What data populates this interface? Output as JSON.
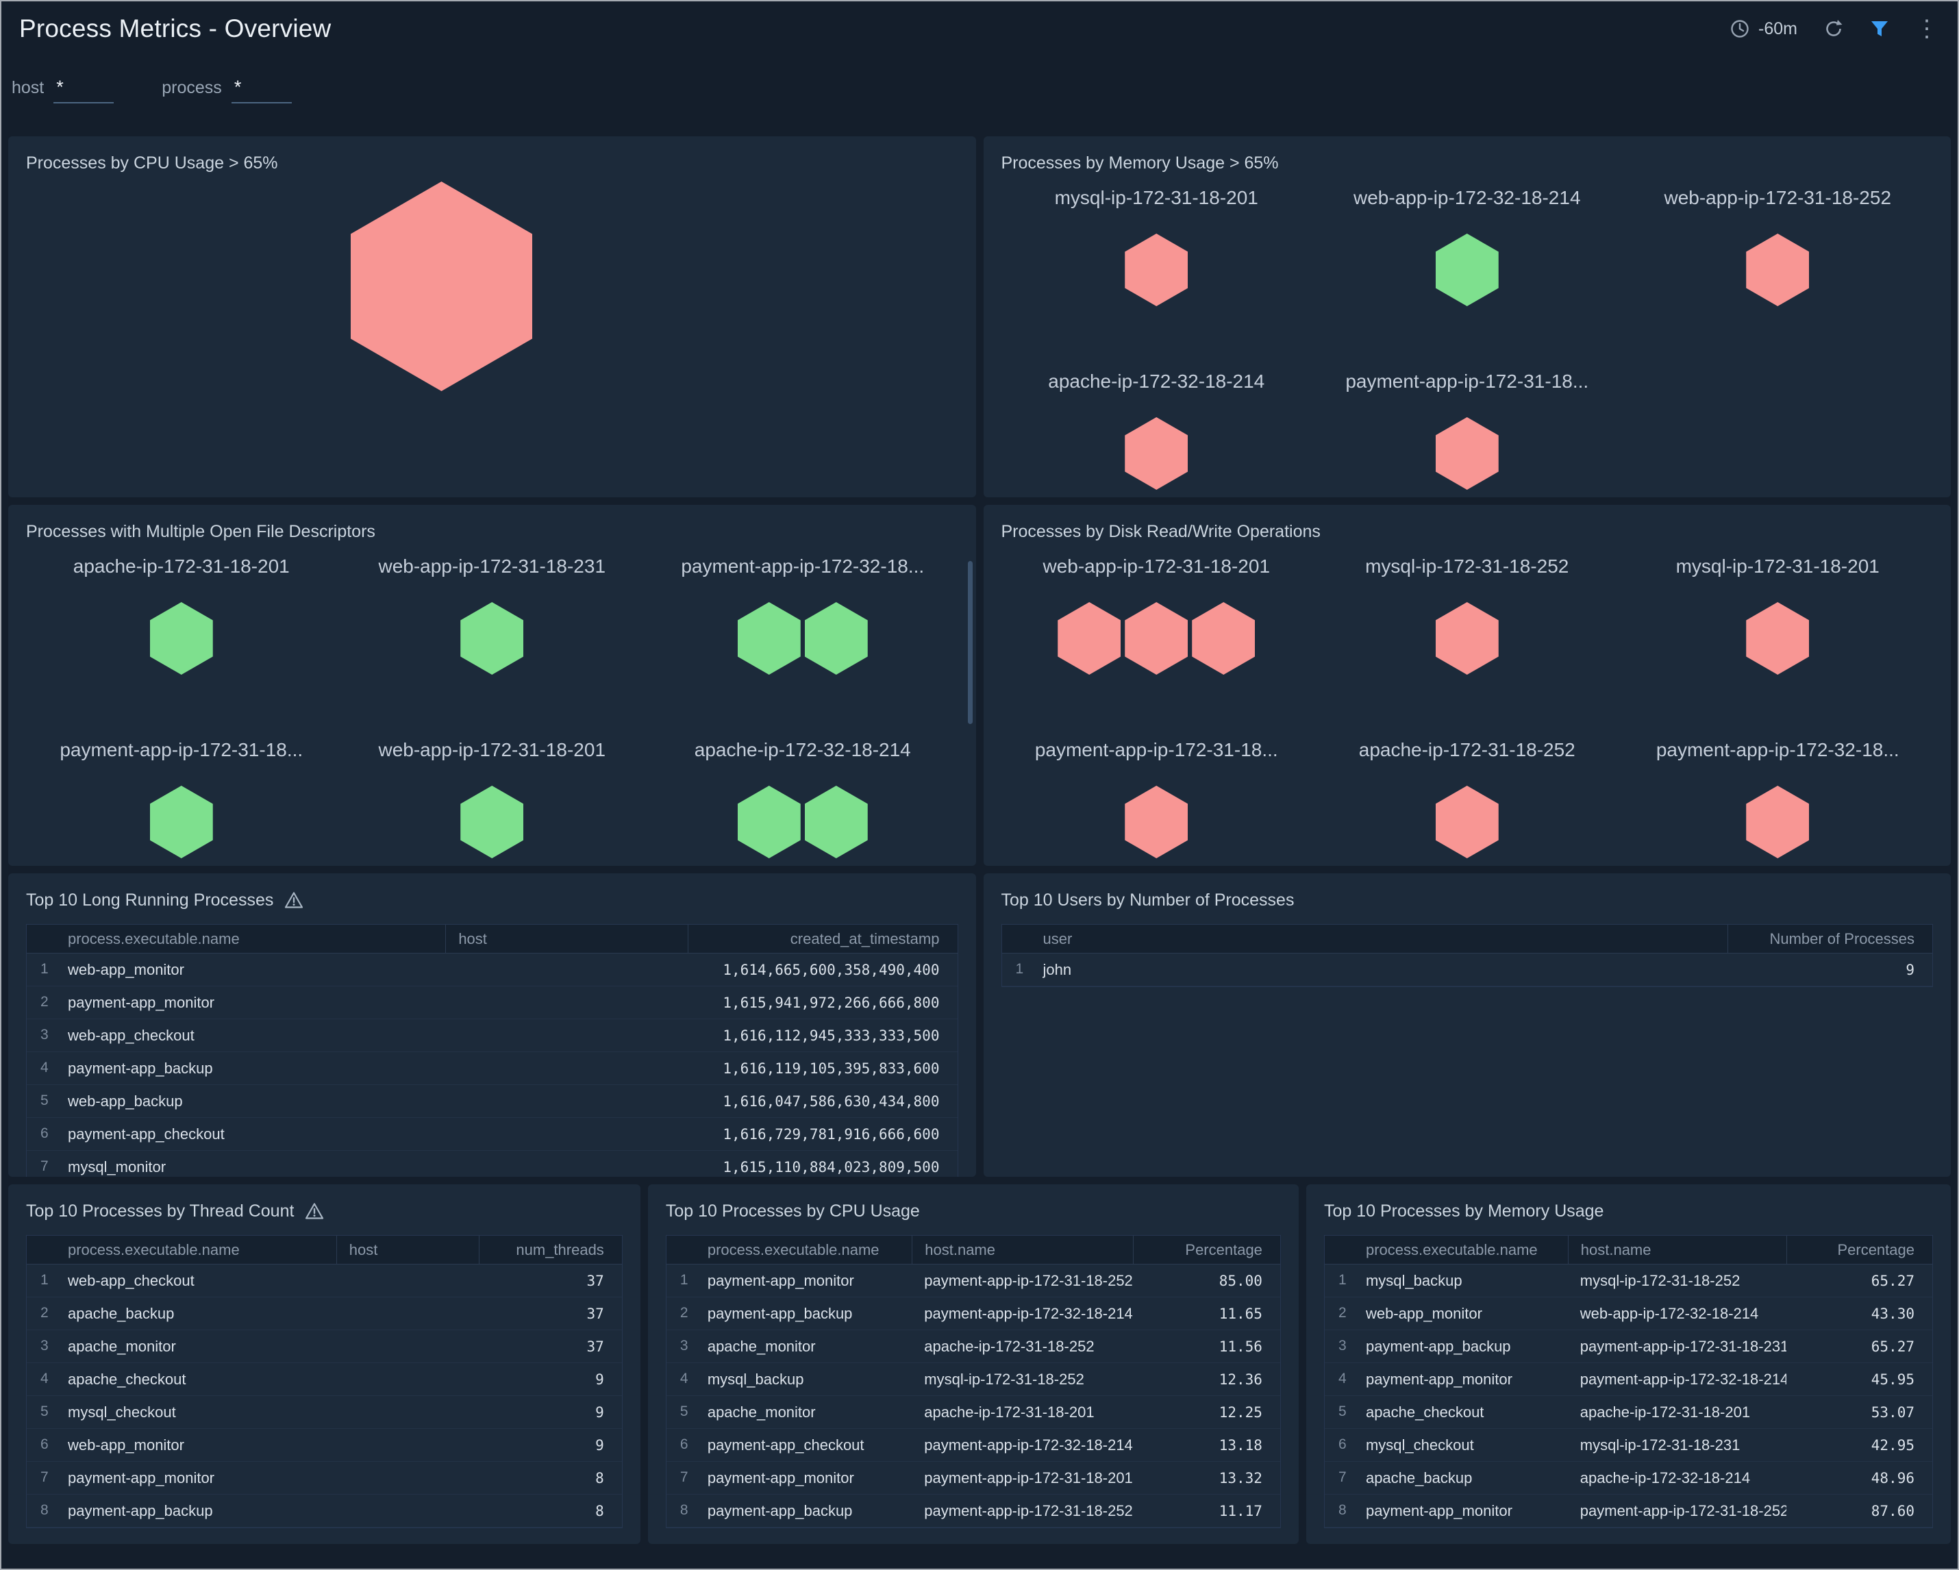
{
  "header": {
    "title": "Process Metrics - Overview",
    "time_range": "-60m"
  },
  "filters": {
    "host": {
      "label": "host",
      "value": "*"
    },
    "process": {
      "label": "process",
      "value": "*"
    }
  },
  "colors": {
    "hex_red": "#f89694",
    "hex_green": "#7ee08e",
    "accent_blue": "#3b9ef5"
  },
  "panels": {
    "cpu_usage": {
      "title": "Processes by CPU Usage > 65%",
      "big_hex_color": "red"
    },
    "memory_usage": {
      "title": "Processes by Memory Usage > 65%",
      "cells": [
        {
          "label": "mysql-ip-172-31-18-201",
          "hexes": [
            "red"
          ]
        },
        {
          "label": "web-app-ip-172-32-18-214",
          "hexes": [
            "green"
          ]
        },
        {
          "label": "web-app-ip-172-31-18-252",
          "hexes": [
            "red"
          ]
        },
        {
          "label": "apache-ip-172-32-18-214",
          "hexes": [
            "red"
          ]
        },
        {
          "label": "payment-app-ip-172-31-18...",
          "hexes": [
            "red"
          ]
        },
        {
          "label": "",
          "hexes": []
        }
      ]
    },
    "file_descriptors": {
      "title": "Processes with Multiple Open File Descriptors",
      "cells": [
        {
          "label": "apache-ip-172-31-18-201",
          "hexes": [
            "green"
          ]
        },
        {
          "label": "web-app-ip-172-31-18-231",
          "hexes": [
            "green"
          ]
        },
        {
          "label": "payment-app-ip-172-32-18...",
          "hexes": [
            "green",
            "green"
          ]
        },
        {
          "label": "payment-app-ip-172-31-18...",
          "hexes": [
            "green"
          ]
        },
        {
          "label": "web-app-ip-172-31-18-201",
          "hexes": [
            "green"
          ]
        },
        {
          "label": "apache-ip-172-32-18-214",
          "hexes": [
            "green",
            "green"
          ]
        }
      ]
    },
    "disk_ops": {
      "title": "Processes by Disk Read/Write Operations",
      "cells": [
        {
          "label": "web-app-ip-172-31-18-201",
          "hexes": [
            "red",
            "red",
            "red"
          ]
        },
        {
          "label": "mysql-ip-172-31-18-252",
          "hexes": [
            "red"
          ]
        },
        {
          "label": "mysql-ip-172-31-18-201",
          "hexes": [
            "red"
          ]
        },
        {
          "label": "payment-app-ip-172-31-18...",
          "hexes": [
            "red"
          ]
        },
        {
          "label": "apache-ip-172-31-18-252",
          "hexes": [
            "red"
          ]
        },
        {
          "label": "payment-app-ip-172-32-18...",
          "hexes": [
            "red"
          ]
        }
      ]
    },
    "long_running": {
      "title": "Top 10 Long Running Processes",
      "columns": [
        "process.executable.name",
        "host",
        "created_at_timestamp"
      ],
      "rows": [
        [
          "web-app_monitor",
          "",
          "1,614,665,600,358,490,400"
        ],
        [
          "payment-app_monitor",
          "",
          "1,615,941,972,266,666,800"
        ],
        [
          "web-app_checkout",
          "",
          "1,616,112,945,333,333,500"
        ],
        [
          "payment-app_backup",
          "",
          "1,616,119,105,395,833,600"
        ],
        [
          "web-app_backup",
          "",
          "1,616,047,586,630,434,800"
        ],
        [
          "payment-app_checkout",
          "",
          "1,616,729,781,916,666,600"
        ],
        [
          "mysql_monitor",
          "",
          "1,615,110,884,023,809,500"
        ]
      ]
    },
    "users": {
      "title": "Top 10 Users by Number of Processes",
      "columns": [
        "user",
        "Number of Processes"
      ],
      "rows": [
        [
          "john",
          "9"
        ]
      ]
    },
    "thread_count": {
      "title": "Top 10 Processes by Thread Count",
      "columns": [
        "process.executable.name",
        "host",
        "num_threads"
      ],
      "rows": [
        [
          "web-app_checkout",
          "",
          "37"
        ],
        [
          "apache_backup",
          "",
          "37"
        ],
        [
          "apache_monitor",
          "",
          "37"
        ],
        [
          "apache_checkout",
          "",
          "9"
        ],
        [
          "mysql_checkout",
          "",
          "9"
        ],
        [
          "web-app_monitor",
          "",
          "9"
        ],
        [
          "payment-app_monitor",
          "",
          "8"
        ],
        [
          "payment-app_backup",
          "",
          "8"
        ]
      ]
    },
    "cpu_table": {
      "title": "Top 10 Processes by CPU Usage",
      "columns": [
        "process.executable.name",
        "host.name",
        "Percentage"
      ],
      "rows": [
        [
          "payment-app_monitor",
          "payment-app-ip-172-31-18-252",
          "85.00"
        ],
        [
          "payment-app_backup",
          "payment-app-ip-172-32-18-214",
          "11.65"
        ],
        [
          "apache_monitor",
          "apache-ip-172-31-18-252",
          "11.56"
        ],
        [
          "mysql_backup",
          "mysql-ip-172-31-18-252",
          "12.36"
        ],
        [
          "apache_monitor",
          "apache-ip-172-31-18-201",
          "12.25"
        ],
        [
          "payment-app_checkout",
          "payment-app-ip-172-32-18-214",
          "13.18"
        ],
        [
          "payment-app_monitor",
          "payment-app-ip-172-31-18-201",
          "13.32"
        ],
        [
          "payment-app_backup",
          "payment-app-ip-172-31-18-252",
          "11.17"
        ]
      ]
    },
    "memory_table": {
      "title": "Top 10 Processes by Memory Usage",
      "columns": [
        "process.executable.name",
        "host.name",
        "Percentage"
      ],
      "rows": [
        [
          "mysql_backup",
          "mysql-ip-172-31-18-252",
          "65.27"
        ],
        [
          "web-app_monitor",
          "web-app-ip-172-32-18-214",
          "43.30"
        ],
        [
          "payment-app_backup",
          "payment-app-ip-172-31-18-231",
          "65.27"
        ],
        [
          "payment-app_monitor",
          "payment-app-ip-172-32-18-214",
          "45.95"
        ],
        [
          "apache_checkout",
          "apache-ip-172-31-18-201",
          "53.07"
        ],
        [
          "mysql_checkout",
          "mysql-ip-172-31-18-231",
          "42.95"
        ],
        [
          "apache_backup",
          "apache-ip-172-32-18-214",
          "48.96"
        ],
        [
          "payment-app_monitor",
          "payment-app-ip-172-31-18-252",
          "87.60"
        ]
      ]
    }
  }
}
